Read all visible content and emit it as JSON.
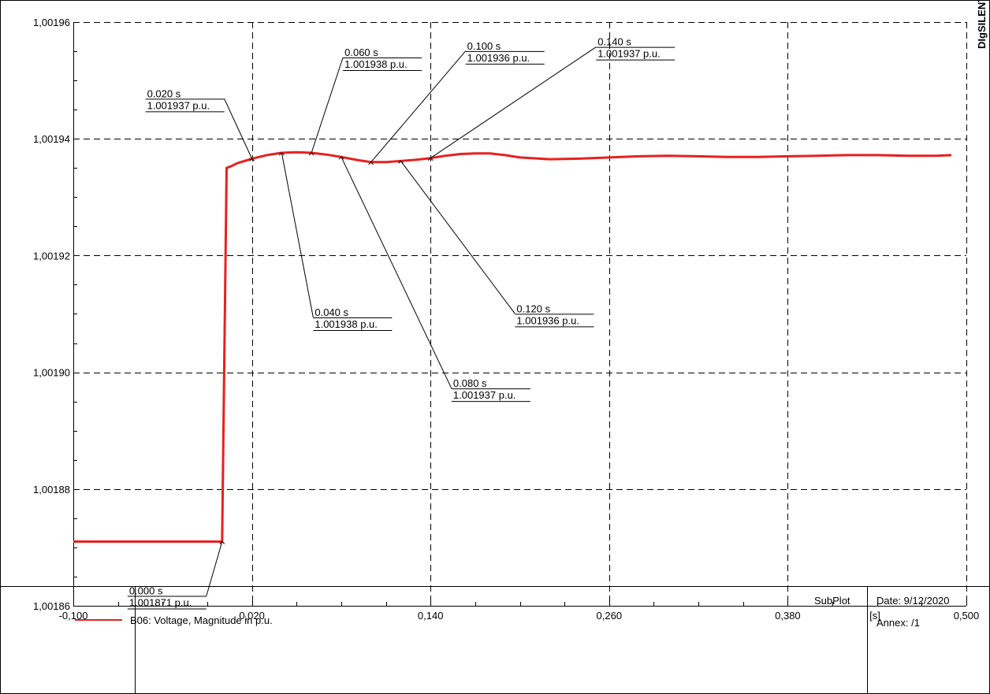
{
  "brand": "DIgSILENT",
  "chart_data": {
    "type": "line",
    "x_unit_label": "[s]",
    "xlim": [
      -0.1,
      0.5
    ],
    "ylim": [
      1.00186,
      1.00196
    ],
    "x_ticks": [
      -0.1,
      0.02,
      0.14,
      0.26,
      0.38,
      0.5
    ],
    "x_tick_labels": [
      "-0,100",
      "0,020",
      "0,140",
      "0,260",
      "0,380",
      "0,500"
    ],
    "y_ticks": [
      1.00186,
      1.00188,
      1.0019,
      1.00192,
      1.00194,
      1.00196
    ],
    "y_tick_labels": [
      "1,00186",
      "1,00188",
      "1,00190",
      "1,00192",
      "1,00194",
      "1,00196"
    ],
    "grid": true,
    "legend_position": "bottom-left",
    "series": [
      {
        "name": "B06: Voltage, Magnitude in p.u.",
        "color": "#e8201e",
        "x": [
          -0.1,
          -0.005,
          0.0,
          0.003,
          0.006,
          0.01,
          0.02,
          0.03,
          0.04,
          0.05,
          0.06,
          0.07,
          0.08,
          0.09,
          0.1,
          0.11,
          0.12,
          0.13,
          0.14,
          0.15,
          0.16,
          0.17,
          0.18,
          0.19,
          0.2,
          0.22,
          0.24,
          0.26,
          0.28,
          0.3,
          0.32,
          0.34,
          0.36,
          0.38,
          0.4,
          0.42,
          0.44,
          0.46,
          0.48,
          0.49
        ],
        "y": [
          1.001871,
          1.001871,
          1.001871,
          1.001935,
          1.0019353,
          1.0019358,
          1.0019366,
          1.0019372,
          1.0019376,
          1.0019377,
          1.0019376,
          1.0019373,
          1.0019369,
          1.0019364,
          1.001936,
          1.001936,
          1.0019362,
          1.0019364,
          1.0019367,
          1.0019371,
          1.0019374,
          1.0019375,
          1.0019375,
          1.0019372,
          1.0019368,
          1.0019365,
          1.0019366,
          1.0019368,
          1.001937,
          1.0019371,
          1.001937,
          1.0019369,
          1.0019369,
          1.001937,
          1.0019371,
          1.0019372,
          1.0019372,
          1.0019371,
          1.0019371,
          1.0019372
        ]
      }
    ],
    "annotations": [
      {
        "x": 0.0,
        "y": 1.001871,
        "time_label": "0.000 s",
        "value_label": "1.001871 p.u.",
        "placement": "lower-left"
      },
      {
        "x": 0.02,
        "y": 1.0019366,
        "time_label": "0.020 s",
        "value_label": "1.001937 p.u.",
        "placement": "upper-left"
      },
      {
        "x": 0.04,
        "y": 1.0019376,
        "time_label": "0.040 s",
        "value_label": "1.001938 p.u.",
        "placement": "lower-right"
      },
      {
        "x": 0.06,
        "y": 1.0019376,
        "time_label": "0.060 s",
        "value_label": "1.001938 p.u.",
        "placement": "upper-right"
      },
      {
        "x": 0.08,
        "y": 1.0019369,
        "time_label": "0.080 s",
        "value_label": "1.001937 p.u.",
        "placement": "lower-right"
      },
      {
        "x": 0.1,
        "y": 1.001936,
        "time_label": "0.100 s",
        "value_label": "1.001936 p.u.",
        "placement": "upper-right"
      },
      {
        "x": 0.12,
        "y": 1.0019362,
        "time_label": "0.120 s",
        "value_label": "1.001936 p.u.",
        "placement": "lower-right"
      },
      {
        "x": 0.14,
        "y": 1.0019367,
        "time_label": "0.140 s",
        "value_label": "1.001937 p.u.",
        "placement": "upper-right"
      }
    ]
  },
  "footer": {
    "subplot_label": "SubPlot",
    "date_label": "Date: 9/12/2020",
    "annex_label": "Annex:  /1"
  }
}
